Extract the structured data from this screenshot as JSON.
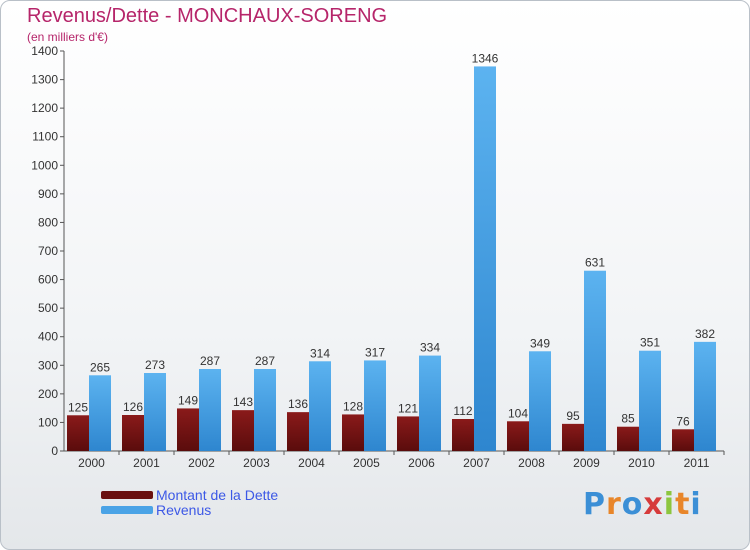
{
  "chart_data": {
    "type": "bar",
    "title": "Revenus/Dette - MONCHAUX-SORENG",
    "subtitle": "(en milliers d'€)",
    "categories": [
      "2000",
      "2001",
      "2002",
      "2003",
      "2004",
      "2005",
      "2006",
      "2007",
      "2008",
      "2009",
      "2010",
      "2011"
    ],
    "series": [
      {
        "name": "Montant de la Dette",
        "color": "#7a1414",
        "values": [
          125,
          126,
          149,
          143,
          136,
          128,
          121,
          112,
          104,
          95,
          85,
          76
        ]
      },
      {
        "name": "Revenus",
        "color": "#4aa3e6",
        "values": [
          265,
          273,
          287,
          287,
          314,
          317,
          334,
          1346,
          349,
          631,
          351,
          382
        ]
      }
    ],
    "yticks": [
      0,
      100,
      200,
      300,
      400,
      500,
      600,
      700,
      800,
      900,
      1000,
      1100,
      1200,
      1300,
      1400
    ],
    "ylim": [
      0,
      1400
    ],
    "grid": false,
    "legend": "bottom-left"
  },
  "logo": {
    "letters": [
      "P",
      "r",
      "o",
      "x",
      "i",
      "t",
      "i"
    ],
    "colors": [
      "#3b8fd6",
      "#e8862a",
      "#3b8fd6",
      "#d63b3b",
      "#8cc63e",
      "#e8862a",
      "#3b8fd6"
    ]
  }
}
